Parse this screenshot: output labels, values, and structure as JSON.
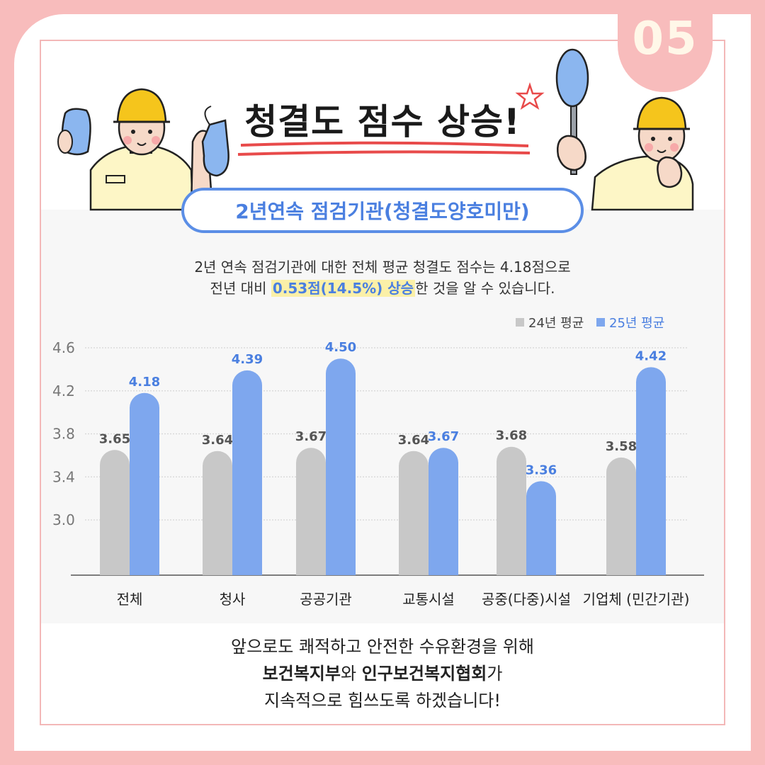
{
  "page_number": "05",
  "title": "청결도 점수 상승!",
  "subtitle": "2년연속 점검기관(청결도양호미만)",
  "description": {
    "line1": "2년 연속 점검기관에 대한 전체 평균 청결도 점수는 4.18점으로",
    "line2_pre": "전년 대비 ",
    "line2_highlight": "0.53점(14.5%) 상승",
    "line2_post": "한 것을 알 수 있습니다."
  },
  "colors": {
    "s2024": "#c8c8c8",
    "s2025": "#7ea7ee",
    "label2025": "#4a7fe0",
    "accent": "#f8bcbc"
  },
  "chart_data": {
    "type": "bar",
    "categories": [
      "전체",
      "청사",
      "공공기관",
      "교통시설",
      "공중(다중)시설",
      "기업체 (민간기관)"
    ],
    "series": [
      {
        "name": "24년 평균",
        "values": [
          3.65,
          3.64,
          3.67,
          3.64,
          3.68,
          3.58
        ],
        "labels": [
          "3.65",
          "3.64",
          "3.67",
          "3.64",
          "3.68",
          "3.58"
        ]
      },
      {
        "name": "25년 평균",
        "values": [
          4.18,
          4.39,
          4.5,
          3.67,
          3.36,
          4.42
        ],
        "labels": [
          "4.18",
          "4.39",
          "4.50",
          "3.67",
          "3.36",
          "4.42"
        ]
      }
    ],
    "yticks": [
      "4.6",
      "4.2",
      "3.8",
      "3.4",
      "3.0"
    ],
    "ylim": [
      3.0,
      4.6
    ],
    "grid": true,
    "legend_position": "top-right"
  },
  "footer": {
    "line1": "앞으로도 쾌적하고 안전한 수유환경을 위해",
    "org1": "보건복지부",
    "conj": "와 ",
    "org2": "인구보건복지협회",
    "line2_post": "가",
    "line3": "지속적으로 힘쓰도록 하겠습니다!"
  }
}
